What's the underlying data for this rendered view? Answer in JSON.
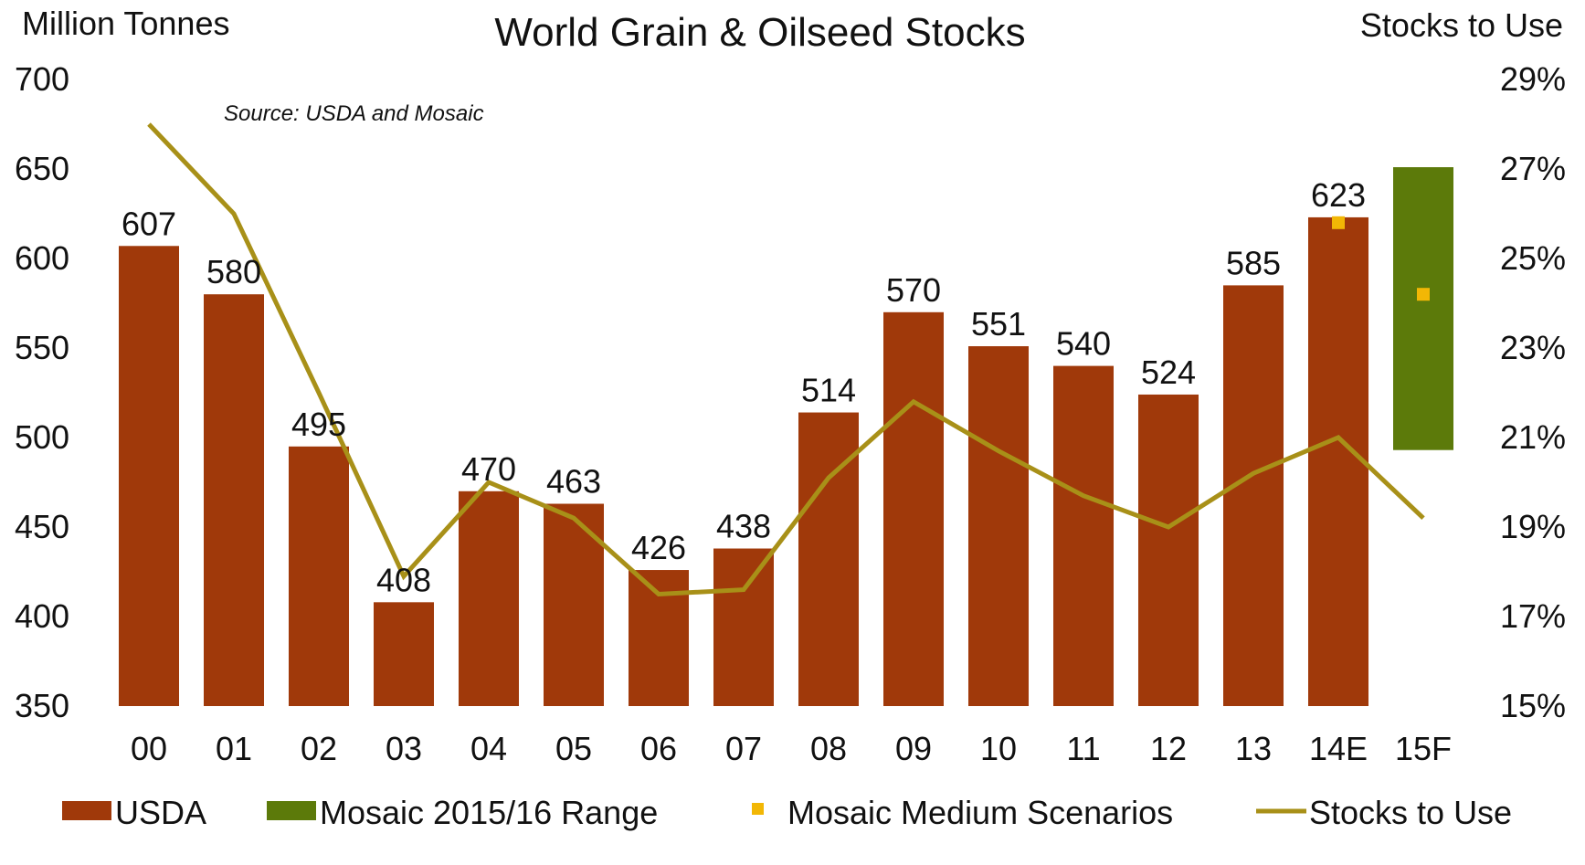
{
  "chart_data": {
    "type": "bar",
    "title": "World Grain & Oilseed Stocks",
    "subtitle": "Source: USDA and Mosaic",
    "ylabel_left": "Million Tonnes",
    "ylabel_right": "Stocks to Use",
    "categories": [
      "00",
      "01",
      "02",
      "03",
      "04",
      "05",
      "06",
      "07",
      "08",
      "09",
      "10",
      "11",
      "12",
      "13",
      "14E",
      "15F"
    ],
    "left_axis": {
      "min": 350,
      "max": 700,
      "ticks": [
        "700",
        "650",
        "600",
        "550",
        "500",
        "450",
        "400",
        "350"
      ]
    },
    "right_axis": {
      "min": 15,
      "max": 29,
      "ticks": [
        "29%",
        "27%",
        "25%",
        "23%",
        "21%",
        "19%",
        "17%",
        "15%"
      ]
    },
    "series": [
      {
        "name": "USDA",
        "kind": "bar",
        "axis": "left",
        "color": "#A0390A",
        "values": [
          607,
          580,
          495,
          408,
          470,
          463,
          426,
          438,
          514,
          570,
          551,
          540,
          524,
          585,
          623,
          null
        ],
        "labels": [
          "607",
          "580",
          "495",
          "408",
          "470",
          "463",
          "426",
          "438",
          "514",
          "570",
          "551",
          "540",
          "524",
          "585",
          "623",
          ""
        ]
      },
      {
        "name": "Mosaic 2015/16 Range",
        "kind": "range-bar",
        "axis": "left",
        "color": "#5C7A0A",
        "category": "15F",
        "low": 493,
        "high": 651
      },
      {
        "name": "Mosaic Medium Scenarios",
        "kind": "marker",
        "axis": "left",
        "color": "#F2B705",
        "points": [
          {
            "category": "14E",
            "value": 620
          },
          {
            "category": "15F",
            "value": 580
          }
        ]
      },
      {
        "name": "Stocks to Use",
        "kind": "line",
        "axis": "right",
        "color": "#A89018",
        "values": [
          28.0,
          26.0,
          22.0,
          17.9,
          20.0,
          19.2,
          17.5,
          17.6,
          20.1,
          21.8,
          20.7,
          19.7,
          19.0,
          20.2,
          21.0,
          19.2
        ]
      }
    ],
    "legend": {
      "placement": "bottom",
      "items": [
        {
          "label": "USDA",
          "symbol": "bar",
          "color": "#A0390A"
        },
        {
          "label": "Mosaic 2015/16 Range",
          "symbol": "bar",
          "color": "#5C7A0A"
        },
        {
          "label": "Mosaic Medium Scenarios",
          "symbol": "marker",
          "color": "#F2B705"
        },
        {
          "label": "Stocks to Use",
          "symbol": "line",
          "color": "#A89018"
        }
      ]
    },
    "grid": false
  }
}
